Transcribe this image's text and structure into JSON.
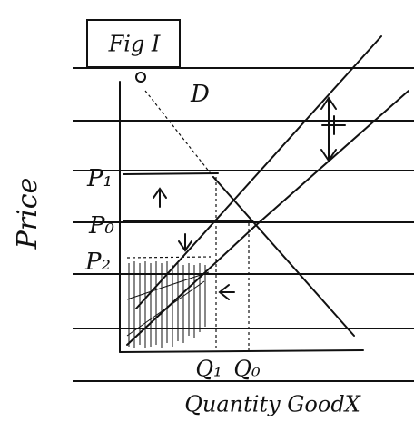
{
  "figure": {
    "title": "Fig I",
    "curve_label": "D",
    "axis_y": "Price",
    "price_labels": [
      "P₁",
      "P₀",
      "P₂"
    ],
    "quantity_labels": [
      "Q₁",
      "Q₀"
    ],
    "axis_x": "Quantity GoodX"
  }
}
